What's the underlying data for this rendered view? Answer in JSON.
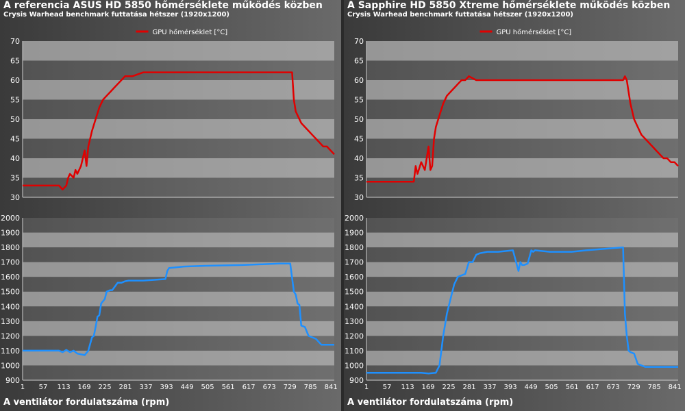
{
  "colors": {
    "temperature_line": "#e00000",
    "fan_line": "#1e90ff",
    "band_light": "#b4b4b4",
    "band_dark": "#7a7a7a",
    "tick_text": "#ffffff"
  },
  "panels": [
    {
      "title": "A referencia ASUS HD 5850 hőmérséklete működés közben",
      "subtitle": "Crysis Warhead benchmark futtatása hétszer (1920x1200)",
      "footer": "A ventilátor fordulatszáma (rpm)"
    },
    {
      "title": "A Sapphire HD 5850 Xtreme hőmérséklete működés közben",
      "subtitle": "Crysis Warhead benchmark futtatása hétszer (1920x1200)",
      "footer": "A ventilátor fordulatszáma (rpm)"
    }
  ],
  "chart_data": [
    {
      "type": "line",
      "title": "A referencia ASUS HD 5850 hőmérséklete működés közben",
      "subtitle": "Crysis Warhead benchmark futtatása hétszer (1920x1200)",
      "ylim": [
        30,
        70
      ],
      "yticks": [
        30,
        35,
        40,
        45,
        50,
        55,
        60,
        65,
        70
      ],
      "xlim": [
        1,
        850
      ],
      "legend": "top-center",
      "grid": "alternating horizontal bands",
      "series": [
        {
          "name": "GPU hőmérséklet [°C]",
          "x": [
            1,
            100,
            110,
            120,
            125,
            130,
            140,
            145,
            150,
            160,
            170,
            175,
            180,
            185,
            190,
            200,
            210,
            220,
            230,
            240,
            250,
            260,
            270,
            280,
            300,
            330,
            360,
            400,
            500,
            600,
            700,
            735,
            740,
            745,
            750,
            760,
            770,
            780,
            790,
            800,
            810,
            820,
            830,
            840,
            850
          ],
          "values": [
            33,
            33,
            32,
            33,
            35,
            36,
            35,
            37,
            36,
            38,
            42,
            38,
            43,
            45,
            47,
            50,
            53,
            55,
            56,
            57,
            58,
            59,
            60,
            61,
            61,
            62,
            62,
            62,
            62,
            62,
            62,
            62,
            55,
            52,
            51,
            49,
            48,
            47,
            46,
            45,
            44,
            43,
            43,
            42,
            41
          ]
        }
      ]
    },
    {
      "type": "line",
      "xlabel": "",
      "ylabel": "",
      "ylim": [
        900,
        2000
      ],
      "yticks": [
        900,
        1000,
        1100,
        1200,
        1300,
        1400,
        1500,
        1600,
        1700,
        1800,
        1900,
        2000
      ],
      "xticks": [
        1,
        57,
        113,
        169,
        225,
        281,
        337,
        393,
        449,
        505,
        561,
        617,
        673,
        729,
        785,
        841
      ],
      "xlim": [
        1,
        850
      ],
      "grid": "alternating horizontal bands",
      "series": [
        {
          "x": [
            1,
            100,
            110,
            120,
            130,
            140,
            150,
            170,
            180,
            190,
            195,
            200,
            205,
            210,
            215,
            225,
            230,
            240,
            245,
            260,
            270,
            280,
            290,
            300,
            330,
            360,
            390,
            395,
            400,
            420,
            440,
            500,
            600,
            700,
            730,
            740,
            745,
            750,
            755,
            760,
            770,
            780,
            790,
            800,
            815,
            820,
            830,
            850
          ],
          "values": [
            1100,
            1100,
            1090,
            1105,
            1090,
            1100,
            1080,
            1070,
            1100,
            1190,
            1200,
            1260,
            1330,
            1340,
            1420,
            1450,
            1500,
            1510,
            1510,
            1560,
            1560,
            1570,
            1575,
            1575,
            1575,
            1580,
            1585,
            1640,
            1660,
            1665,
            1670,
            1675,
            1680,
            1690,
            1690,
            1500,
            1480,
            1420,
            1410,
            1270,
            1260,
            1200,
            1190,
            1180,
            1140,
            1140,
            1140,
            1140
          ]
        }
      ]
    },
    {
      "type": "line",
      "title": "A Sapphire HD 5850 Xtreme hőmérséklete működés közben",
      "subtitle": "Crysis Warhead benchmark futtatása hétszer (1920x1200)",
      "ylim": [
        30,
        70
      ],
      "yticks": [
        30,
        35,
        40,
        45,
        50,
        55,
        60,
        65,
        70
      ],
      "xlim": [
        1,
        850
      ],
      "legend": "top-center",
      "grid": "alternating horizontal bands",
      "series": [
        {
          "name": "GPU hőmérséklet [°C]",
          "x": [
            1,
            50,
            100,
            130,
            135,
            140,
            150,
            160,
            170,
            175,
            180,
            185,
            190,
            200,
            210,
            220,
            230,
            240,
            250,
            260,
            270,
            280,
            300,
            350,
            400,
            500,
            600,
            700,
            705,
            710,
            720,
            730,
            740,
            750,
            760,
            770,
            780,
            790,
            800,
            810,
            820,
            830,
            840,
            850
          ],
          "values": [
            34,
            34,
            34,
            34,
            38,
            36,
            39,
            37,
            43,
            37,
            38,
            45,
            48,
            51,
            54,
            56,
            57,
            58,
            59,
            60,
            60,
            61,
            60,
            60,
            60,
            60,
            60,
            60,
            61,
            60,
            54,
            50,
            48,
            46,
            45,
            44,
            43,
            42,
            41,
            40,
            40,
            39,
            39,
            38
          ]
        }
      ]
    },
    {
      "type": "line",
      "xlabel": "",
      "ylabel": "",
      "ylim": [
        900,
        2000
      ],
      "yticks": [
        900,
        1000,
        1100,
        1200,
        1300,
        1400,
        1500,
        1600,
        1700,
        1800,
        1900,
        2000
      ],
      "xticks": [
        1,
        57,
        113,
        169,
        225,
        281,
        337,
        393,
        449,
        505,
        561,
        617,
        673,
        729,
        785,
        841
      ],
      "xlim": [
        1,
        850
      ],
      "grid": "alternating horizontal bands",
      "series": [
        {
          "x": [
            1,
            100,
            150,
            170,
            190,
            200,
            210,
            220,
            230,
            240,
            250,
            260,
            270,
            280,
            290,
            300,
            310,
            330,
            360,
            400,
            415,
            420,
            425,
            430,
            440,
            450,
            455,
            460,
            500,
            560,
            600,
            650,
            700,
            705,
            710,
            715,
            720,
            730,
            740,
            750,
            760,
            800,
            850
          ],
          "values": [
            950,
            950,
            950,
            945,
            950,
            1000,
            1200,
            1350,
            1450,
            1550,
            1600,
            1610,
            1620,
            1700,
            1700,
            1750,
            1760,
            1770,
            1770,
            1780,
            1640,
            1700,
            1680,
            1680,
            1690,
            1780,
            1770,
            1780,
            1770,
            1770,
            1780,
            1790,
            1800,
            1350,
            1200,
            1100,
            1090,
            1080,
            1010,
            1000,
            990,
            990,
            990
          ]
        }
      ]
    }
  ]
}
